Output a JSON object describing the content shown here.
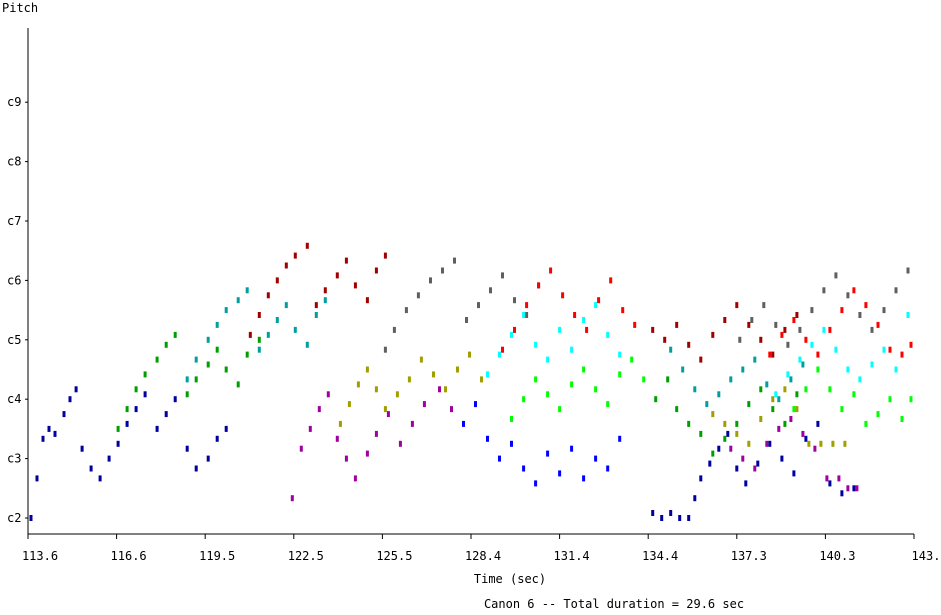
{
  "chart_data": {
    "type": "scatter",
    "title": "Canon 6 -- Total duration = 29.6 sec",
    "xlabel": "Time (sec)",
    "ylabel": "Pitch",
    "xlim": [
      113.6,
      143.1
    ],
    "x_ticks": [
      "113.6",
      "116.6",
      "119.5",
      "122.5",
      "125.5",
      "128.4",
      "131.4",
      "134.4",
      "137.3",
      "140.3",
      "143."
    ],
    "y_ticks": [
      "c2",
      "c3",
      "c4",
      "c5",
      "c6",
      "c7",
      "c8",
      "c9"
    ],
    "grid": false,
    "legend": "none",
    "series": [
      {
        "color": "#00009f",
        "points": [
          [
            113.7,
            36
          ],
          [
            113.9,
            44
          ],
          [
            114.1,
            52
          ],
          [
            114.3,
            54
          ],
          [
            114.5,
            53
          ],
          [
            114.8,
            57
          ],
          [
            115.0,
            60
          ],
          [
            115.2,
            62
          ],
          [
            115.4,
            50
          ],
          [
            115.7,
            46
          ],
          [
            116.0,
            44
          ],
          [
            116.3,
            48
          ],
          [
            116.6,
            51
          ],
          [
            116.9,
            55
          ],
          [
            117.2,
            58
          ],
          [
            117.5,
            61
          ],
          [
            117.9,
            54
          ],
          [
            118.2,
            57
          ],
          [
            118.5,
            60
          ],
          [
            118.9,
            50
          ],
          [
            119.2,
            46
          ],
          [
            119.6,
            48
          ],
          [
            119.9,
            52
          ],
          [
            120.2,
            54
          ]
        ]
      },
      {
        "color": "#009f00",
        "points": [
          [
            116.6,
            54
          ],
          [
            116.9,
            58
          ],
          [
            117.2,
            62
          ],
          [
            117.5,
            65
          ],
          [
            117.9,
            68
          ],
          [
            118.2,
            71
          ],
          [
            118.5,
            73
          ],
          [
            118.9,
            61
          ],
          [
            119.2,
            64
          ],
          [
            119.6,
            67
          ],
          [
            119.9,
            70
          ],
          [
            120.2,
            66
          ],
          [
            120.6,
            63
          ],
          [
            120.9,
            69
          ],
          [
            121.3,
            72
          ]
        ]
      },
      {
        "color": "#009f9f",
        "points": [
          [
            118.9,
            64
          ],
          [
            119.2,
            68
          ],
          [
            119.6,
            72
          ],
          [
            119.9,
            75
          ],
          [
            120.2,
            78
          ],
          [
            120.6,
            80
          ],
          [
            120.9,
            82
          ],
          [
            121.3,
            70
          ],
          [
            121.6,
            73
          ],
          [
            121.9,
            76
          ],
          [
            122.2,
            79
          ],
          [
            122.5,
            74
          ],
          [
            122.9,
            71
          ],
          [
            123.2,
            77
          ],
          [
            123.5,
            80
          ]
        ]
      },
      {
        "color": "#9f0000",
        "points": [
          [
            121.0,
            73
          ],
          [
            121.3,
            77
          ],
          [
            121.6,
            81
          ],
          [
            121.9,
            84
          ],
          [
            122.2,
            87
          ],
          [
            122.5,
            89
          ],
          [
            122.9,
            91
          ],
          [
            123.2,
            79
          ],
          [
            123.5,
            82
          ],
          [
            123.9,
            85
          ],
          [
            124.2,
            88
          ],
          [
            124.5,
            83
          ],
          [
            124.9,
            80
          ],
          [
            125.2,
            86
          ],
          [
            125.5,
            89
          ]
        ]
      },
      {
        "color": "#9f009f",
        "points": [
          [
            122.4,
            40
          ],
          [
            122.7,
            50
          ],
          [
            123.0,
            54
          ],
          [
            123.3,
            58
          ],
          [
            123.6,
            61
          ],
          [
            123.9,
            52
          ],
          [
            124.2,
            48
          ],
          [
            124.5,
            44
          ],
          [
            124.9,
            49
          ],
          [
            125.2,
            53
          ],
          [
            125.6,
            57
          ],
          [
            126.0,
            51
          ],
          [
            126.4,
            55
          ],
          [
            126.8,
            59
          ],
          [
            127.3,
            62
          ],
          [
            127.7,
            58
          ]
        ]
      },
      {
        "color": "#9f9f00",
        "points": [
          [
            124.0,
            55
          ],
          [
            124.3,
            59
          ],
          [
            124.6,
            63
          ],
          [
            124.9,
            66
          ],
          [
            125.2,
            62
          ],
          [
            125.5,
            58
          ],
          [
            125.9,
            61
          ],
          [
            126.3,
            64
          ],
          [
            126.7,
            68
          ],
          [
            127.1,
            65
          ],
          [
            127.5,
            62
          ],
          [
            127.9,
            66
          ],
          [
            128.3,
            69
          ],
          [
            128.7,
            64
          ]
        ]
      },
      {
        "color": "#5f5f5f",
        "points": [
          [
            125.5,
            70
          ],
          [
            125.8,
            74
          ],
          [
            126.2,
            78
          ],
          [
            126.6,
            81
          ],
          [
            127.0,
            84
          ],
          [
            127.4,
            86
          ],
          [
            127.8,
            88
          ],
          [
            128.2,
            76
          ],
          [
            128.6,
            79
          ],
          [
            129.0,
            82
          ],
          [
            129.4,
            85
          ],
          [
            129.8,
            80
          ],
          [
            130.2,
            77
          ],
          [
            130.6,
            83
          ]
        ]
      },
      {
        "color": "#0000ff",
        "points": [
          [
            128.1,
            55
          ],
          [
            128.5,
            59
          ],
          [
            128.9,
            52
          ],
          [
            129.3,
            48
          ],
          [
            129.7,
            51
          ],
          [
            130.1,
            46
          ],
          [
            130.5,
            43
          ],
          [
            130.9,
            49
          ],
          [
            131.3,
            45
          ],
          [
            131.7,
            50
          ],
          [
            132.1,
            44
          ],
          [
            132.5,
            48
          ],
          [
            132.9,
            46
          ],
          [
            133.3,
            52
          ]
        ]
      },
      {
        "color": "#00ffff",
        "points": [
          [
            128.9,
            65
          ],
          [
            129.3,
            69
          ],
          [
            129.7,
            73
          ],
          [
            130.1,
            77
          ],
          [
            130.5,
            71
          ],
          [
            130.9,
            68
          ],
          [
            131.3,
            74
          ],
          [
            131.7,
            70
          ],
          [
            132.1,
            76
          ],
          [
            132.5,
            79
          ],
          [
            132.9,
            73
          ],
          [
            133.3,
            69
          ]
        ]
      },
      {
        "color": "#ff0000",
        "points": [
          [
            129.4,
            70
          ],
          [
            129.8,
            74
          ],
          [
            130.2,
            79
          ],
          [
            130.6,
            83
          ],
          [
            131.0,
            86
          ],
          [
            131.4,
            81
          ],
          [
            131.8,
            77
          ],
          [
            132.2,
            74
          ],
          [
            132.6,
            80
          ],
          [
            133.0,
            84
          ],
          [
            133.4,
            78
          ],
          [
            133.8,
            75
          ]
        ]
      },
      {
        "color": "#00ff00",
        "points": [
          [
            129.7,
            56
          ],
          [
            130.1,
            60
          ],
          [
            130.5,
            64
          ],
          [
            130.9,
            61
          ],
          [
            131.3,
            58
          ],
          [
            131.7,
            63
          ],
          [
            132.1,
            66
          ],
          [
            132.5,
            62
          ],
          [
            132.9,
            59
          ],
          [
            133.3,
            65
          ],
          [
            133.7,
            68
          ],
          [
            134.1,
            64
          ]
        ]
      },
      {
        "color": "#00009f",
        "points": [
          [
            134.4,
            37
          ],
          [
            134.7,
            36
          ],
          [
            135.0,
            37
          ],
          [
            135.3,
            36
          ],
          [
            135.6,
            36
          ],
          [
            135.8,
            40
          ],
          [
            136.0,
            44
          ],
          [
            136.3,
            47
          ],
          [
            136.6,
            50
          ],
          [
            136.9,
            53
          ],
          [
            137.2,
            46
          ],
          [
            137.5,
            43
          ],
          [
            137.9,
            47
          ],
          [
            138.3,
            51
          ],
          [
            138.7,
            48
          ],
          [
            139.1,
            45
          ],
          [
            139.5,
            52
          ],
          [
            139.9,
            55
          ],
          [
            140.3,
            43
          ],
          [
            140.7,
            41
          ],
          [
            141.1,
            42
          ]
        ]
      },
      {
        "color": "#009f00",
        "points": [
          [
            134.5,
            60
          ],
          [
            134.9,
            64
          ],
          [
            135.2,
            58
          ],
          [
            135.6,
            55
          ],
          [
            136.0,
            53
          ],
          [
            136.4,
            49
          ],
          [
            136.8,
            52
          ],
          [
            137.2,
            55
          ],
          [
            137.6,
            59
          ],
          [
            138.0,
            62
          ],
          [
            138.4,
            58
          ],
          [
            138.8,
            55
          ],
          [
            139.2,
            61
          ]
        ]
      },
      {
        "color": "#009f9f",
        "points": [
          [
            135.0,
            70
          ],
          [
            135.4,
            66
          ],
          [
            135.8,
            62
          ],
          [
            136.2,
            59
          ],
          [
            136.6,
            61
          ],
          [
            137.0,
            64
          ],
          [
            137.4,
            66
          ],
          [
            137.8,
            68
          ],
          [
            138.2,
            63
          ],
          [
            138.6,
            60
          ],
          [
            139.0,
            64
          ],
          [
            139.4,
            67
          ]
        ]
      },
      {
        "color": "#9f0000",
        "points": [
          [
            134.4,
            74
          ],
          [
            134.8,
            72
          ],
          [
            135.2,
            75
          ],
          [
            135.6,
            71
          ],
          [
            136.0,
            68
          ],
          [
            136.4,
            73
          ],
          [
            136.8,
            76
          ],
          [
            137.2,
            79
          ],
          [
            137.6,
            75
          ],
          [
            138.0,
            72
          ],
          [
            138.4,
            69
          ],
          [
            138.8,
            74
          ],
          [
            139.2,
            77
          ]
        ]
      },
      {
        "color": "#9f9f00",
        "points": [
          [
            136.4,
            57
          ],
          [
            136.8,
            55
          ],
          [
            137.2,
            53
          ],
          [
            137.6,
            51
          ],
          [
            138.0,
            56
          ],
          [
            138.4,
            60
          ],
          [
            138.8,
            62
          ],
          [
            139.2,
            58
          ],
          [
            139.6,
            51
          ],
          [
            140.0,
            51
          ],
          [
            140.4,
            51
          ],
          [
            140.8,
            51
          ]
        ]
      },
      {
        "color": "#9f009f",
        "points": [
          [
            137.0,
            50
          ],
          [
            137.4,
            48
          ],
          [
            137.8,
            46
          ],
          [
            138.2,
            51
          ],
          [
            138.6,
            54
          ],
          [
            139.0,
            56
          ],
          [
            139.4,
            53
          ],
          [
            139.8,
            50
          ],
          [
            140.2,
            44
          ],
          [
            140.6,
            44
          ],
          [
            140.9,
            42
          ],
          [
            141.2,
            42
          ]
        ]
      },
      {
        "color": "#5f5f5f",
        "points": [
          [
            137.3,
            72
          ],
          [
            137.7,
            76
          ],
          [
            138.1,
            79
          ],
          [
            138.5,
            75
          ],
          [
            138.9,
            71
          ],
          [
            139.3,
            74
          ],
          [
            139.7,
            78
          ],
          [
            140.1,
            82
          ],
          [
            140.5,
            85
          ],
          [
            140.9,
            81
          ],
          [
            141.3,
            77
          ],
          [
            141.7,
            74
          ],
          [
            142.1,
            78
          ],
          [
            142.5,
            82
          ],
          [
            142.9,
            86
          ]
        ]
      },
      {
        "color": "#ff0000",
        "points": [
          [
            138.3,
            69
          ],
          [
            138.7,
            73
          ],
          [
            139.1,
            76
          ],
          [
            139.5,
            72
          ],
          [
            139.9,
            69
          ],
          [
            140.3,
            74
          ],
          [
            140.7,
            78
          ],
          [
            141.1,
            82
          ],
          [
            141.5,
            79
          ],
          [
            141.9,
            75
          ],
          [
            142.3,
            70
          ],
          [
            142.7,
            69
          ],
          [
            143.0,
            71
          ]
        ]
      },
      {
        "color": "#00ffff",
        "points": [
          [
            138.5,
            61
          ],
          [
            138.9,
            65
          ],
          [
            139.3,
            68
          ],
          [
            139.7,
            71
          ],
          [
            140.1,
            74
          ],
          [
            140.5,
            70
          ],
          [
            140.9,
            66
          ],
          [
            141.3,
            64
          ],
          [
            141.7,
            67
          ],
          [
            142.1,
            70
          ],
          [
            142.5,
            66
          ],
          [
            142.9,
            77
          ]
        ]
      },
      {
        "color": "#00ff00",
        "points": [
          [
            139.1,
            58
          ],
          [
            139.5,
            62
          ],
          [
            139.9,
            66
          ],
          [
            140.3,
            62
          ],
          [
            140.7,
            58
          ],
          [
            141.1,
            61
          ],
          [
            141.5,
            55
          ],
          [
            141.9,
            57
          ],
          [
            142.3,
            60
          ],
          [
            142.7,
            56
          ],
          [
            143.0,
            60
          ]
        ]
      }
    ]
  }
}
